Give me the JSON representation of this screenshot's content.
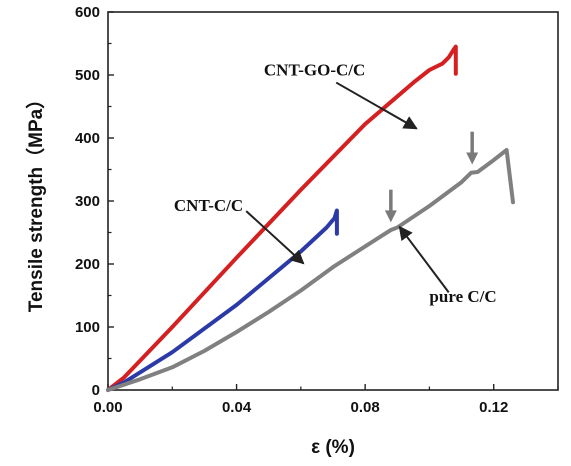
{
  "chart_data": {
    "type": "line",
    "title": "",
    "xlabel": "ε (%)",
    "ylabel": "Tensile strength（MPa）",
    "xlim": [
      0,
      0.14
    ],
    "ylim": [
      0,
      600
    ],
    "xticks": [
      0.0,
      0.04,
      0.08,
      0.12
    ],
    "xtick_labels": [
      "0.00",
      "0.04",
      "0.08",
      "0.12"
    ],
    "yticks": [
      0,
      100,
      200,
      300,
      400,
      500,
      600
    ],
    "ytick_labels": [
      "0",
      "100",
      "200",
      "300",
      "400",
      "500",
      "600"
    ],
    "grid": false,
    "legend": "none",
    "series": [
      {
        "name": "CNT-GO-C/C",
        "color": "#d42020",
        "x": [
          0.0,
          0.005,
          0.02,
          0.04,
          0.06,
          0.08,
          0.095,
          0.1,
          0.104,
          0.106,
          0.1075,
          0.1082,
          0.1082
        ],
        "y": [
          0,
          20,
          100,
          210,
          318,
          422,
          488,
          508,
          518,
          528,
          540,
          545,
          502
        ]
      },
      {
        "name": "CNT-C/C",
        "color": "#2b3aa6",
        "x": [
          0.0,
          0.005,
          0.02,
          0.04,
          0.06,
          0.068,
          0.0705,
          0.0712,
          0.0712
        ],
        "y": [
          0,
          12,
          60,
          135,
          220,
          258,
          273,
          285,
          248
        ]
      },
      {
        "name": "pure C/C",
        "color": "#808080",
        "x": [
          0.0,
          0.01,
          0.02,
          0.03,
          0.04,
          0.05,
          0.06,
          0.07,
          0.08,
          0.088,
          0.09,
          0.1,
          0.11,
          0.112,
          0.113,
          0.115,
          0.12,
          0.123,
          0.124,
          0.126
        ],
        "y": [
          0,
          17,
          36,
          62,
          92,
          124,
          158,
          195,
          228,
          254,
          258,
          292,
          330,
          340,
          345,
          346,
          365,
          377,
          381,
          298
        ]
      }
    ],
    "annotations": [
      {
        "text": "CNT-GO-C/C",
        "label_x": 0.0485,
        "label_y": 499,
        "arrow_from": [
          0.071,
          488
        ],
        "arrow_to": [
          0.096,
          415
        ]
      },
      {
        "text": "CNT-C/C",
        "label_x": 0.0205,
        "label_y": 284,
        "arrow_from": [
          0.043,
          284
        ],
        "arrow_to": [
          0.0608,
          201
        ]
      },
      {
        "text": "pure C/C",
        "label_x": 0.1,
        "label_y": 140,
        "arrow_from": [
          0.106,
          155
        ],
        "arrow_to": [
          0.0907,
          259
        ]
      }
    ],
    "markers": [
      {
        "type": "down-arrow",
        "x": 0.088,
        "y_top": 318,
        "y_tip": 266
      },
      {
        "type": "down-arrow",
        "x": 0.1133,
        "y_top": 410,
        "y_tip": 358
      }
    ]
  }
}
